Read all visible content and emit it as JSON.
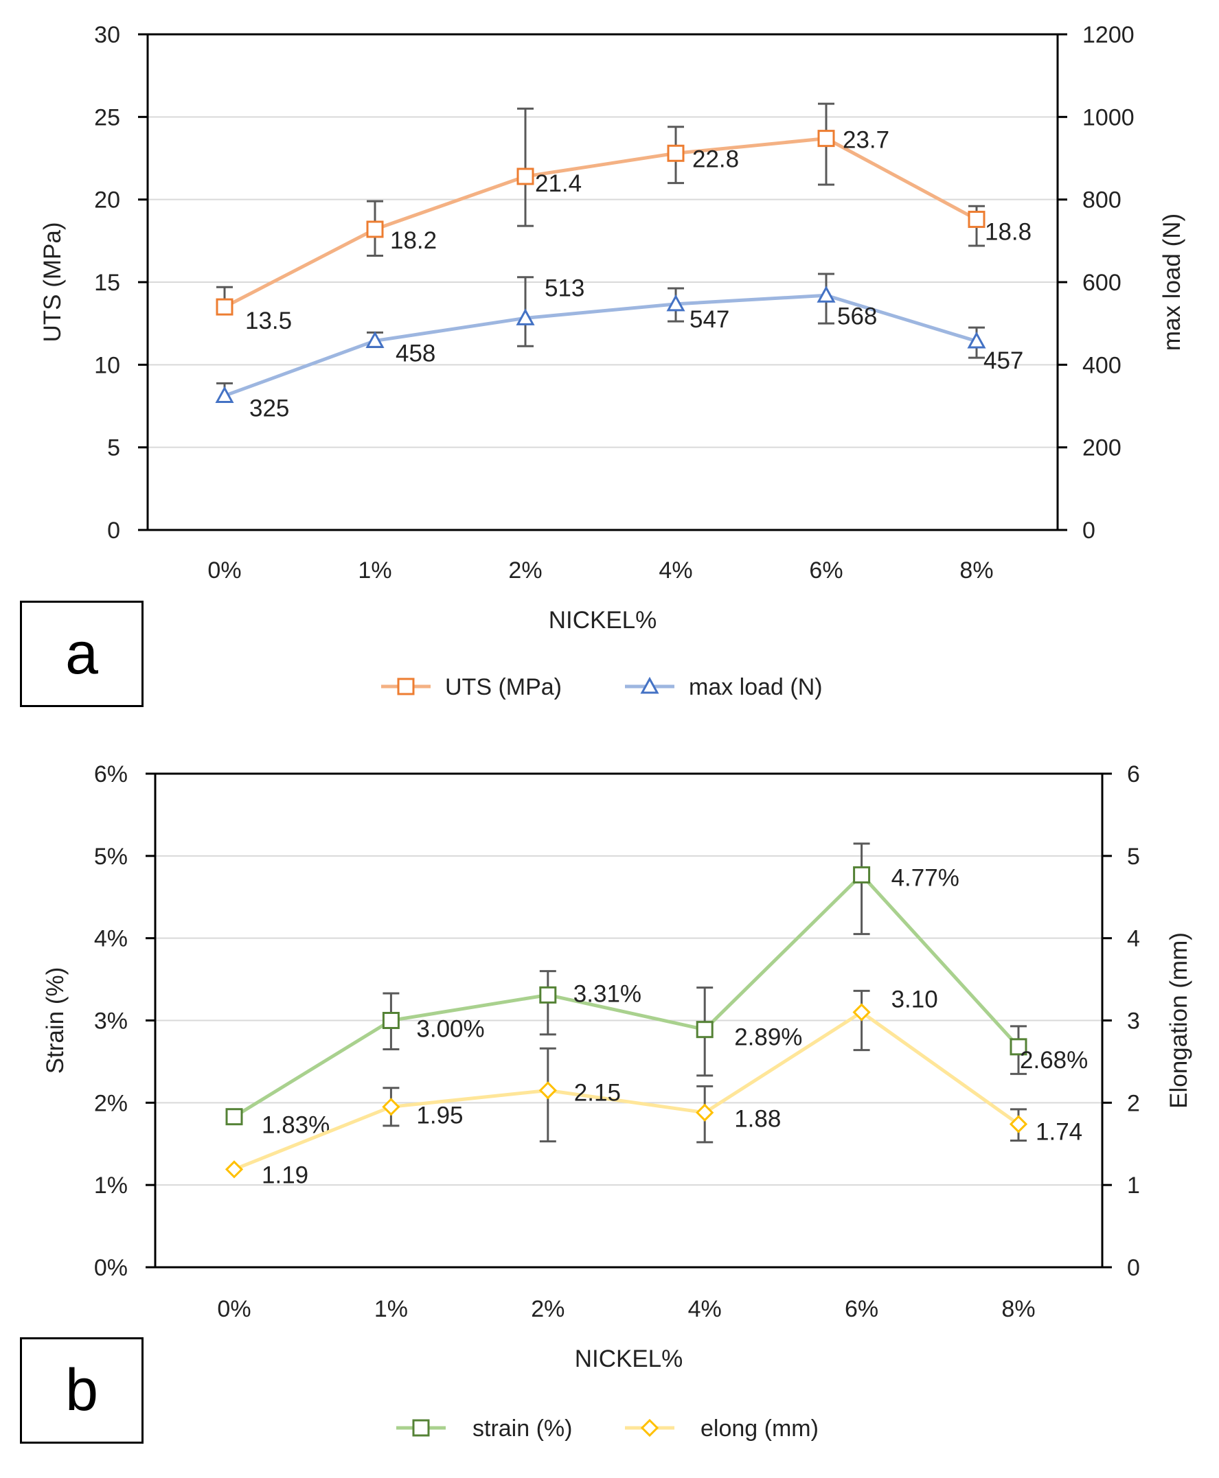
{
  "figure": {
    "panel_a_label": "a",
    "panel_b_label": "b"
  },
  "chart_data": [
    {
      "type": "line",
      "panel": "a",
      "categories": [
        "0%",
        "1%",
        "2%",
        "4%",
        "6%",
        "8%"
      ],
      "xlabel": "NICKEL%",
      "ylabel_left": "UTS (MPa)",
      "ylabel_right": "max load (N)",
      "ylim_left": [
        0,
        30
      ],
      "yticks_left": [
        0,
        5,
        10,
        15,
        20,
        25,
        30
      ],
      "yticklabels_left": [
        "0",
        "5",
        "10",
        "15",
        "20",
        "25",
        "30"
      ],
      "ylim_right": [
        0,
        1200
      ],
      "yticks_right": [
        0,
        200,
        400,
        600,
        800,
        1000,
        1200
      ],
      "yticklabels_right": [
        "0",
        "200",
        "400",
        "600",
        "800",
        "1000",
        "1200"
      ],
      "grid": true,
      "legend_position": "bottom",
      "series": [
        {
          "name": "UTS (MPa)",
          "axis": "left",
          "marker": "square",
          "line_color": "#F4B183",
          "marker_color": "#ED7D31",
          "values": [
            13.5,
            18.2,
            21.4,
            22.8,
            23.7,
            18.8
          ],
          "labels": [
            "13.5",
            "18.2",
            "21.4",
            "22.8",
            "23.7",
            "18.8"
          ],
          "error_low": [
            13.2,
            16.6,
            18.4,
            21.0,
            20.9,
            17.2
          ],
          "error_high": [
            14.7,
            19.9,
            25.5,
            24.4,
            25.8,
            19.6
          ]
        },
        {
          "name": "max load (N)",
          "axis": "right",
          "marker": "triangle",
          "line_color": "#9DB6E0",
          "marker_color": "#4472C4",
          "values": [
            325,
            458,
            513,
            547,
            568,
            457
          ],
          "labels": [
            "325",
            "458",
            "513",
            "547",
            "568",
            "457"
          ],
          "error_low": [
            310,
            443,
            445,
            505,
            500,
            417
          ],
          "error_high": [
            355,
            478,
            612,
            585,
            620,
            490
          ]
        }
      ]
    },
    {
      "type": "line",
      "panel": "b",
      "categories": [
        "0%",
        "1%",
        "2%",
        "4%",
        "6%",
        "8%"
      ],
      "xlabel": "NICKEL%",
      "ylabel_left": "Strain (%)",
      "ylabel_right": "Elongation (mm)",
      "ylim_left": [
        0,
        6
      ],
      "yticks_left": [
        0,
        1,
        2,
        3,
        4,
        5,
        6
      ],
      "yticklabels_left": [
        "0%",
        "1%",
        "2%",
        "3%",
        "4%",
        "5%",
        "6%"
      ],
      "ylim_right": [
        0,
        6
      ],
      "yticks_right": [
        0,
        1,
        2,
        3,
        4,
        5,
        6
      ],
      "yticklabels_right": [
        "0",
        "1",
        "2",
        "3",
        "4",
        "5",
        "6"
      ],
      "grid": true,
      "legend_position": "bottom",
      "series": [
        {
          "name": "strain (%)",
          "axis": "left",
          "marker": "square",
          "line_color": "#A9D18E",
          "marker_color": "#548235",
          "values": [
            1.83,
            3.0,
            3.31,
            2.89,
            4.77,
            2.68
          ],
          "labels": [
            "1.83%",
            "3.00%",
            "3.31%",
            "2.89%",
            "4.77%",
            "2.68%"
          ],
          "error_low": null,
          "error_high": null,
          "error_bounds": [
            null,
            [
              2.65,
              3.33
            ],
            [
              2.83,
              3.6
            ],
            [
              2.33,
              3.4
            ],
            [
              4.05,
              5.15
            ],
            [
              2.35,
              2.93
            ]
          ]
        },
        {
          "name": "elong (mm)",
          "axis": "right",
          "marker": "diamond",
          "line_color": "#FFE699",
          "marker_color": "#FFC000",
          "values": [
            1.19,
            1.95,
            2.15,
            1.88,
            3.1,
            1.74
          ],
          "labels": [
            "1.19",
            "1.95",
            "2.15",
            "1.88",
            "3.10",
            "1.74"
          ],
          "error_low": null,
          "error_high": null,
          "error_bounds": [
            null,
            [
              1.72,
              2.18
            ],
            [
              1.53,
              2.66
            ],
            [
              1.52,
              2.2
            ],
            [
              2.64,
              3.36
            ],
            [
              1.54,
              1.92
            ]
          ]
        }
      ]
    }
  ]
}
